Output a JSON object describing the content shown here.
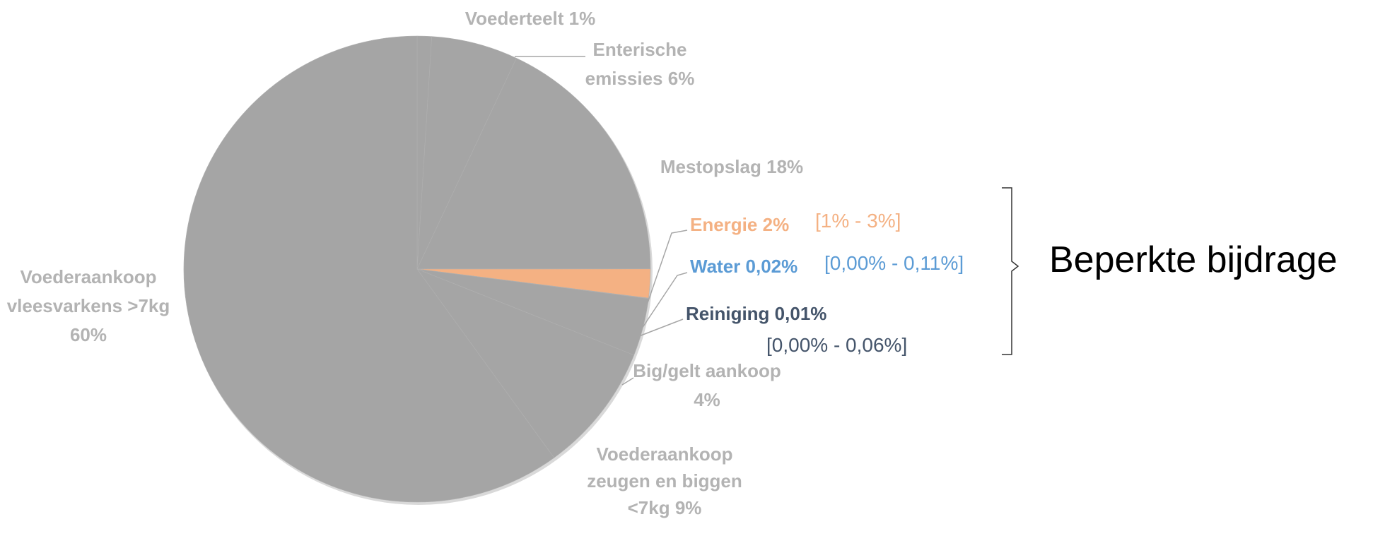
{
  "chart_data": {
    "type": "pie",
    "categories": [
      "Voederteelt",
      "Enterische emissies",
      "Mestopslag",
      "Energie",
      "Water",
      "Reiniging",
      "Big/gelt aankoop",
      "Voederaankoop zeugen en biggen <7kg",
      "Voederaankoop vleesvarkens >7kg"
    ],
    "values": [
      1,
      6,
      18,
      2,
      0.02,
      0.01,
      4,
      9,
      60
    ],
    "value_labels": [
      "1%",
      "6%",
      "18%",
      "2%",
      "0,02%",
      "0,01%",
      "4%",
      "9%",
      "60%"
    ],
    "colors": [
      "#a5a5a5",
      "#a5a5a5",
      "#a5a5a5",
      "#f4b183",
      "#a5a5a5",
      "#a5a5a5",
      "#a5a5a5",
      "#a5a5a5",
      "#a5a5a5"
    ],
    "label_colors": [
      "#b3b3b3",
      "#b3b3b3",
      "#b3b3b3",
      "#f4b183",
      "#5b9bd5",
      "#44546a",
      "#b3b3b3",
      "#b3b3b3",
      "#b3b3b3"
    ],
    "range_labels": [
      "[1% - 3%]",
      "[0,00% - 0,11%]",
      "[0,00% - 0,06%]"
    ],
    "range_colors": [
      "#f4b183",
      "#5b9bd5",
      "#44546a"
    ],
    "bracket_label": "Beperkte bijdrage"
  }
}
